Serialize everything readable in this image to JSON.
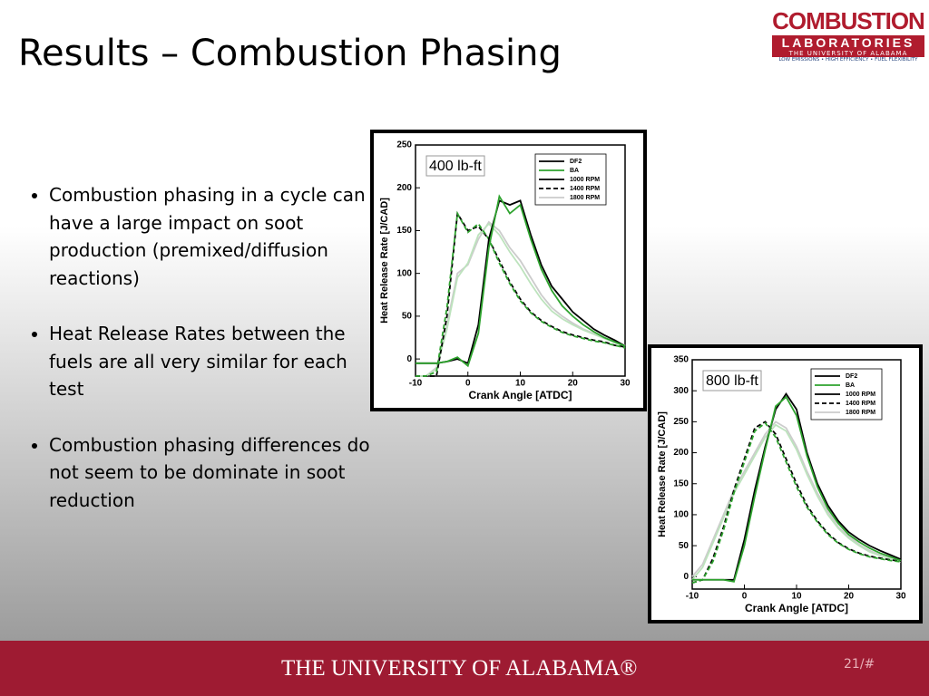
{
  "header": {
    "title": "Results – Combustion Phasing",
    "logo": {
      "name": "COMBUSTION",
      "subtitle": "LABORATORIES",
      "university": "THE UNIVERSITY OF ALABAMA",
      "tagline": "LOW EMISSIONS • HIGH EFFICIENCY • FUEL FLEXIBILITY"
    }
  },
  "bullets": [
    "Combustion phasing in a cycle can have a large impact on soot production (premixed/diffusion reactions)",
    "Heat Release Rates between the fuels are all very similar for each test",
    "Combustion phasing differences do not seem to be dominate in soot reduction"
  ],
  "chart_data": [
    {
      "type": "line",
      "annotation": "400 lb-ft",
      "x_label": "Crank Angle [ATDC]",
      "y_label": "Heat Release Rate [J/CAD]",
      "xlim": [
        -10,
        30
      ],
      "xticks": [
        -10,
        0,
        10,
        20,
        30
      ],
      "ylim": [
        -20,
        250
      ],
      "yticks": [
        0,
        50,
        100,
        150,
        200,
        250
      ],
      "legend": [
        {
          "label": "DF2",
          "color": "#000000",
          "dash": "none"
        },
        {
          "label": "BA",
          "color": "#2ea32e",
          "dash": "none"
        },
        {
          "label": "1000 RPM",
          "color": "#000000",
          "dash": "none"
        },
        {
          "label": "1400 RPM",
          "color": "#000000",
          "dash": "5 3"
        },
        {
          "label": "1800 RPM",
          "color": "#cccccc",
          "dash": "none"
        }
      ],
      "x": [
        -10,
        -8,
        -6,
        -4,
        -2,
        0,
        2,
        4,
        6,
        8,
        10,
        12,
        14,
        16,
        18,
        20,
        22,
        24,
        26,
        28,
        30
      ],
      "series": [
        {
          "color": "#cccccc",
          "dash": "none",
          "values": [
            -20,
            -20,
            -10,
            40,
            100,
            110,
            140,
            160,
            150,
            130,
            115,
            95,
            75,
            60,
            50,
            42,
            35,
            30,
            25,
            20,
            16
          ]
        },
        {
          "color": "#bde3bd",
          "dash": "none",
          "values": [
            -20,
            -20,
            -12,
            35,
            95,
            112,
            145,
            158,
            145,
            125,
            108,
            88,
            70,
            56,
            47,
            40,
            34,
            29,
            24,
            19,
            15
          ]
        },
        {
          "color": "#000000",
          "dash": "5 3",
          "values": [
            -20,
            -20,
            -20,
            50,
            170,
            150,
            155,
            140,
            115,
            90,
            70,
            55,
            45,
            38,
            32,
            28,
            25,
            22,
            20,
            16,
            14
          ]
        },
        {
          "color": "#2ea32e",
          "dash": "5 3",
          "values": [
            -20,
            -20,
            -15,
            60,
            170,
            148,
            158,
            140,
            112,
            88,
            68,
            54,
            44,
            37,
            31,
            27,
            24,
            21,
            19,
            16,
            13
          ]
        },
        {
          "color": "#000000",
          "dash": "none",
          "values": [
            -5,
            -5,
            -5,
            -3,
            0,
            -5,
            40,
            140,
            185,
            180,
            185,
            145,
            110,
            85,
            70,
            55,
            45,
            35,
            28,
            22,
            15
          ]
        },
        {
          "color": "#2ea32e",
          "dash": "none",
          "values": [
            -5,
            -5,
            -5,
            -3,
            2,
            -8,
            30,
            130,
            190,
            170,
            180,
            140,
            105,
            80,
            62,
            50,
            40,
            32,
            25,
            20,
            15
          ]
        }
      ]
    },
    {
      "type": "line",
      "annotation": "800 lb-ft",
      "x_label": "Crank Angle [ATDC]",
      "y_label": "Heat Release Rate [J/CAD]",
      "xlim": [
        -10,
        30
      ],
      "xticks": [
        -10,
        0,
        10,
        20,
        30
      ],
      "ylim": [
        -20,
        350
      ],
      "yticks": [
        0,
        50,
        100,
        150,
        200,
        250,
        300,
        350
      ],
      "legend": [
        {
          "label": "DF2",
          "color": "#000000",
          "dash": "none"
        },
        {
          "label": "BA",
          "color": "#2ea32e",
          "dash": "none"
        },
        {
          "label": "1000 RPM",
          "color": "#000000",
          "dash": "none"
        },
        {
          "label": "1400 RPM",
          "color": "#000000",
          "dash": "5 3"
        },
        {
          "label": "1800 RPM",
          "color": "#cccccc",
          "dash": "none"
        }
      ],
      "x": [
        -10,
        -8,
        -6,
        -4,
        -2,
        0,
        2,
        4,
        6,
        8,
        10,
        12,
        14,
        16,
        18,
        20,
        22,
        24,
        26,
        28,
        30
      ],
      "series": [
        {
          "color": "#cccccc",
          "dash": "none",
          "values": [
            0,
            20,
            60,
            100,
            140,
            170,
            200,
            230,
            250,
            240,
            210,
            170,
            135,
            105,
            80,
            65,
            52,
            42,
            35,
            30,
            25
          ]
        },
        {
          "color": "#bde3bd",
          "dash": "none",
          "values": [
            -5,
            15,
            55,
            95,
            135,
            165,
            195,
            225,
            245,
            235,
            205,
            165,
            130,
            100,
            78,
            62,
            50,
            40,
            34,
            29,
            24
          ]
        },
        {
          "color": "#000000",
          "dash": "5 3",
          "values": [
            -10,
            -5,
            30,
            80,
            140,
            190,
            240,
            250,
            230,
            190,
            150,
            115,
            90,
            70,
            55,
            45,
            38,
            33,
            30,
            27,
            25
          ]
        },
        {
          "color": "#2ea32e",
          "dash": "5 3",
          "values": [
            -10,
            -5,
            25,
            75,
            135,
            185,
            235,
            248,
            225,
            185,
            145,
            112,
            88,
            68,
            54,
            44,
            37,
            32,
            29,
            26,
            24
          ]
        },
        {
          "color": "#000000",
          "dash": "none",
          "values": [
            -5,
            -5,
            -5,
            -5,
            -5,
            60,
            140,
            210,
            270,
            295,
            270,
            200,
            150,
            115,
            90,
            72,
            60,
            50,
            42,
            35,
            28
          ]
        },
        {
          "color": "#2ea32e",
          "dash": "none",
          "values": [
            -5,
            -5,
            -5,
            -5,
            -8,
            50,
            130,
            205,
            275,
            290,
            260,
            195,
            145,
            110,
            86,
            68,
            56,
            46,
            38,
            32,
            26
          ]
        }
      ]
    }
  ],
  "footer": {
    "university": "THE UNIVERSITY OF ALABAMA®",
    "page": "21/#"
  }
}
